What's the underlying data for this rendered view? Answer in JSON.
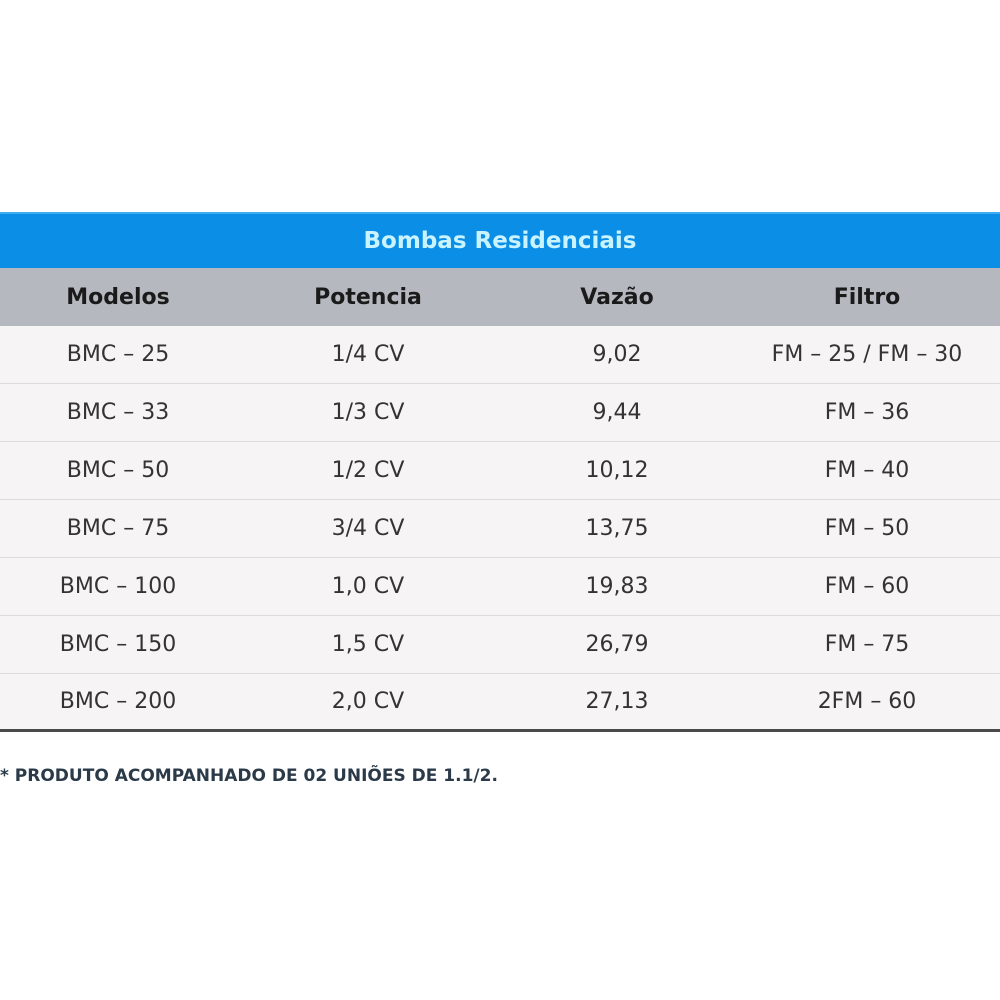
{
  "title": "Bombas Residenciais",
  "columns": [
    "Modelos",
    "Potencia",
    "Vazão",
    "Filtro"
  ],
  "rows": [
    [
      "BMC – 25",
      "1/4 CV",
      "9,02",
      "FM – 25 / FM – 30"
    ],
    [
      "BMC – 33",
      "1/3 CV",
      "9,44",
      "FM – 36"
    ],
    [
      "BMC – 50",
      "1/2 CV",
      "10,12",
      "FM – 40"
    ],
    [
      "BMC – 75",
      "3/4 CV",
      "13,75",
      "FM – 50"
    ],
    [
      "BMC – 100",
      "1,0 CV",
      "19,83",
      "FM – 60"
    ],
    [
      "BMC – 150",
      "1,5 CV",
      "26,79",
      "FM – 75"
    ],
    [
      "BMC – 200",
      "2,0 CV",
      "27,13",
      "2FM – 60"
    ]
  ],
  "footnote": "* PRODUTO ACOMPANHADO DE 02 UNIÕES DE 1.1/2.",
  "colors": {
    "title_bar": "#0a8ee6",
    "header": "#b5b8bf",
    "row": "#f6f4f5"
  }
}
